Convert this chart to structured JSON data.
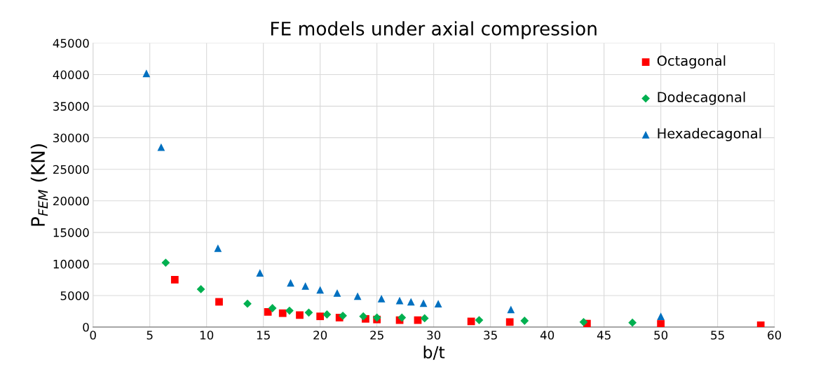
{
  "chart_data": {
    "type": "scatter",
    "title": "FE models under axial compression",
    "xlabel": "b/t",
    "ylabel": "P$_{FEM}$ (KN)",
    "xlim": [
      0,
      60
    ],
    "xticks": [
      0,
      5,
      10,
      15,
      20,
      25,
      30,
      35,
      40,
      45,
      50,
      55,
      60
    ],
    "ylim": [
      0,
      45000
    ],
    "yticks": [
      0,
      5000,
      10000,
      15000,
      20000,
      25000,
      30000,
      35000,
      40000,
      45000
    ],
    "grid": true,
    "legend": "top right",
    "series": [
      {
        "name": "Octagonal",
        "color": "#ff0000",
        "marker": "square",
        "x": [
          7.2,
          11.1,
          15.4,
          16.7,
          18.2,
          20,
          21.7,
          24,
          25,
          27,
          28.6,
          33.3,
          36.7,
          43.5,
          50,
          58.8
        ],
        "values": [
          7500,
          4000,
          2400,
          2200,
          1900,
          1700,
          1500,
          1300,
          1200,
          1100,
          1100,
          900,
          800,
          550,
          500,
          300
        ]
      },
      {
        "name": "Dodecagonal",
        "color": "#00b050",
        "marker": "diamond",
        "x": [
          6.4,
          9.5,
          13.6,
          15.8,
          17.3,
          19,
          20.6,
          22,
          23.8,
          25,
          27.2,
          29.2,
          34,
          38,
          43.2,
          47.5
        ],
        "values": [
          10200,
          6000,
          3700,
          3000,
          2600,
          2300,
          2000,
          1800,
          1700,
          1500,
          1500,
          1400,
          1100,
          1000,
          800,
          700
        ]
      },
      {
        "name": "Hexadecagonal",
        "color": "#0070c0",
        "marker": "triangle",
        "x": [
          4.7,
          6,
          11,
          14.7,
          17.4,
          18.7,
          20,
          21.5,
          23.3,
          25.4,
          27,
          28,
          29.1,
          30.4,
          36.8,
          50
        ],
        "values": [
          40200,
          28500,
          12500,
          8600,
          7000,
          6500,
          5900,
          5400,
          4900,
          4500,
          4200,
          4000,
          3800,
          3700,
          2800,
          1700
        ]
      }
    ]
  }
}
